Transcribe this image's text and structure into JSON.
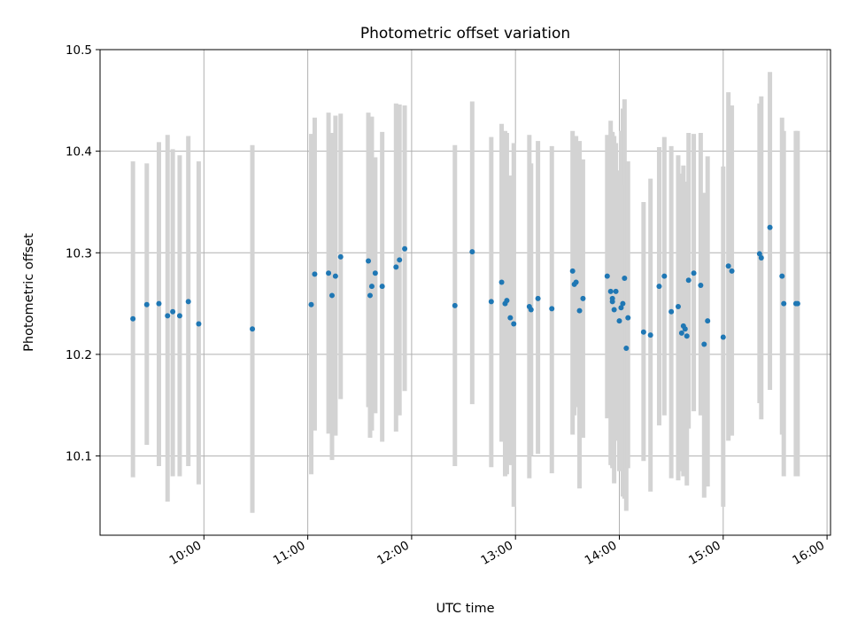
{
  "chart_data": {
    "type": "scatter",
    "title": "Photometric offset variation",
    "xlabel": "UTC time",
    "ylabel": "Photometric offset",
    "x_ticks": [
      "10:00",
      "11:00",
      "12:00",
      "13:00",
      "14:00",
      "15:00",
      "16:00"
    ],
    "y_ticks": [
      "10.1",
      "10.2",
      "10.3",
      "10.4",
      "10.5"
    ],
    "xlim": [
      "09:00",
      "16:02"
    ],
    "ylim": [
      10.022,
      10.5
    ],
    "grid": true,
    "colors": {
      "point": "#1f77b4",
      "errorbar": "#d3d3d3",
      "grid": "#b0b0b0"
    },
    "series": [
      {
        "x": [
          "09:19",
          "09:27",
          "09:34",
          "09:39",
          "09:42",
          "09:46",
          "09:51",
          "09:57",
          "10:28",
          "11:02",
          "11:04",
          "11:12",
          "11:14",
          "11:16",
          "11:19",
          "11:35",
          "11:36",
          "11:37",
          "11:39",
          "11:43",
          "11:51",
          "11:53",
          "11:56",
          "12:25",
          "12:35",
          "12:46",
          "12:52",
          "12:54",
          "12:55",
          "12:57",
          "12:59",
          "13:08",
          "13:09",
          "13:13",
          "13:21",
          "13:33",
          "13:34",
          "13:35",
          "13:37",
          "13:39",
          "13:53",
          "13:55",
          "13:56",
          "13:56",
          "13:57",
          "13:58",
          "14:00",
          "14:01",
          "14:02",
          "14:03",
          "14:04",
          "14:05",
          "14:14",
          "14:18",
          "14:23",
          "14:26",
          "14:30",
          "14:34",
          "14:36",
          "14:37",
          "14:38",
          "14:39",
          "14:40",
          "14:43",
          "14:47",
          "14:49",
          "14:51",
          "15:00",
          "15:03",
          "15:05",
          "15:21",
          "15:22",
          "15:27",
          "15:34",
          "15:35",
          "15:42",
          "15:43"
        ],
        "y": [
          10.235,
          10.249,
          10.25,
          10.238,
          10.242,
          10.238,
          10.252,
          10.23,
          10.225,
          10.249,
          10.279,
          10.28,
          10.258,
          10.277,
          10.296,
          10.292,
          10.258,
          10.267,
          10.28,
          10.267,
          10.286,
          10.293,
          10.304,
          10.248,
          10.301,
          10.252,
          10.271,
          10.25,
          10.253,
          10.236,
          10.23,
          10.247,
          10.244,
          10.255,
          10.245,
          10.282,
          10.269,
          10.271,
          10.243,
          10.255,
          10.277,
          10.262,
          10.255,
          10.252,
          10.244,
          10.262,
          10.233,
          10.246,
          10.25,
          10.275,
          10.206,
          10.236,
          10.222,
          10.219,
          10.267,
          10.277,
          10.242,
          10.247,
          10.221,
          10.228,
          10.225,
          10.218,
          10.273,
          10.28,
          10.268,
          10.21,
          10.233,
          10.217,
          10.287,
          10.282,
          10.299,
          10.295,
          10.325,
          10.277,
          10.25,
          10.25,
          10.25
        ],
        "err_low": [
          10.079,
          10.111,
          10.09,
          10.055,
          10.08,
          10.08,
          10.09,
          10.072,
          10.044,
          10.082,
          10.125,
          10.122,
          10.096,
          10.12,
          10.156,
          10.148,
          10.118,
          10.125,
          10.142,
          10.114,
          10.124,
          10.14,
          10.164,
          10.09,
          10.151,
          10.089,
          10.114,
          10.08,
          10.082,
          10.091,
          10.05,
          10.078,
          10.1,
          10.102,
          10.083,
          10.121,
          10.14,
          10.148,
          10.068,
          10.118,
          10.137,
          10.091,
          10.09,
          10.088,
          10.073,
          10.115,
          10.085,
          10.089,
          10.06,
          10.058,
          10.046,
          10.088,
          10.095,
          10.065,
          10.13,
          10.14,
          10.078,
          10.076,
          10.085,
          10.08,
          10.108,
          10.071,
          10.127,
          10.144,
          10.14,
          10.059,
          10.07,
          10.05,
          10.115,
          10.12,
          10.152,
          10.136,
          10.165,
          10.121,
          10.08,
          10.08,
          10.08
        ],
        "err_high": [
          10.39,
          10.388,
          10.409,
          10.416,
          10.402,
          10.396,
          10.415,
          10.39,
          10.406,
          10.417,
          10.433,
          10.438,
          10.418,
          10.435,
          10.437,
          10.438,
          10.416,
          10.434,
          10.394,
          10.419,
          10.447,
          10.446,
          10.445,
          10.406,
          10.449,
          10.414,
          10.427,
          10.42,
          10.418,
          10.376,
          10.408,
          10.416,
          10.388,
          10.41,
          10.405,
          10.42,
          10.398,
          10.415,
          10.41,
          10.392,
          10.416,
          10.43,
          10.419,
          10.418,
          10.415,
          10.408,
          10.381,
          10.42,
          10.442,
          10.451,
          10.367,
          10.39,
          10.35,
          10.373,
          10.404,
          10.414,
          10.405,
          10.396,
          10.378,
          10.386,
          10.37,
          10.365,
          10.418,
          10.417,
          10.418,
          10.359,
          10.395,
          10.385,
          10.458,
          10.445,
          10.447,
          10.454,
          10.478,
          10.433,
          10.42,
          10.42,
          10.42
        ]
      }
    ]
  }
}
